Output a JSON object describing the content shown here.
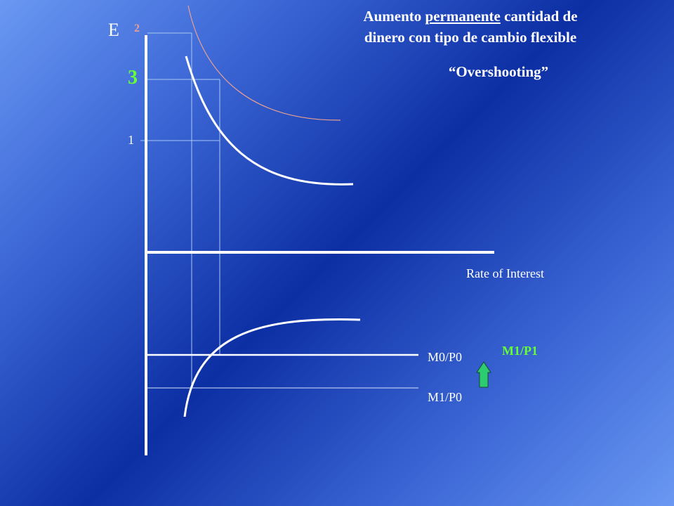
{
  "title": {
    "part1": "Aumento ",
    "underlined": "permanente",
    "part2": "  cantidad de",
    "line2": "dinero con tipo de cambio flexible"
  },
  "subtitle": "“Overshooting”",
  "axis": {
    "y_label": "E",
    "x_label": "Rate of Interest"
  },
  "levels": {
    "one": "1",
    "two": "2",
    "three": "3"
  },
  "money_supply": {
    "m0p0": "M0/P0",
    "m1p0": "M1/P0",
    "m1p1": "M1/P1"
  },
  "colors": {
    "background_dark": "#0c2fa4",
    "background_light": "#6a98f2",
    "axis": "#ffffff",
    "curve_initial": "#ffffff",
    "curve_final": "#e8a090",
    "level_two": "#e8a090",
    "level_three": "#66ff33",
    "m1p1_label": "#66ff33",
    "arrow_fill": "#2ecc71",
    "guide_lines": "#a8c8f0"
  },
  "icons": {
    "arrow": "up-arrow-icon"
  }
}
